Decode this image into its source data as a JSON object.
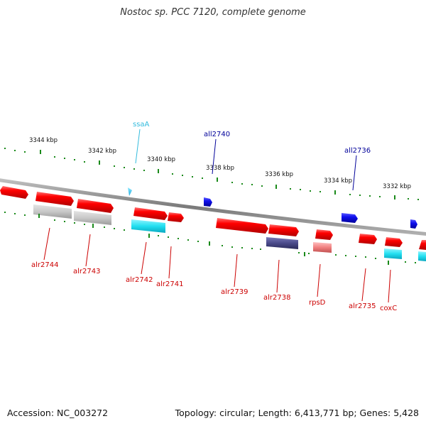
{
  "title": "Nostoc sp. PCC 7120, complete genome",
  "accession": "Accession: NC_003272",
  "summary": "Topology: circular; Length: 6,413,771 bp; Genes: 5,428",
  "colors": {
    "backbone": "#8a8a8a",
    "tick": "#1a8a1a",
    "forward": "#ff1a1a",
    "reverse": "#1a1ae6",
    "gray_feature": "#c8c8c8",
    "cyan_feature": "#33ddee",
    "navy_feature": "#4a4a8a",
    "pink_feature": "#f08080",
    "red_label": "#cc0000",
    "blue_label": "#000099",
    "cyan_label": "#33bbdd"
  },
  "scale_labels": [
    "3344 kbp",
    "3342 kbp",
    "3340 kbp",
    "3338 kbp",
    "3336 kbp",
    "3334 kbp",
    "3332 kbp"
  ],
  "genes": {
    "top": [
      {
        "name": "ssaA",
        "color": "cyan"
      },
      {
        "name": "all2740",
        "color": "blue"
      },
      {
        "name": "all2736",
        "color": "blue"
      }
    ],
    "bottom": [
      {
        "name": "alr2744"
      },
      {
        "name": "alr2743"
      },
      {
        "name": "alr2742"
      },
      {
        "name": "alr2741"
      },
      {
        "name": "alr2739"
      },
      {
        "name": "alr2738"
      },
      {
        "name": "rpsD"
      },
      {
        "name": "alr2735"
      },
      {
        "name": "coxC"
      }
    ]
  }
}
